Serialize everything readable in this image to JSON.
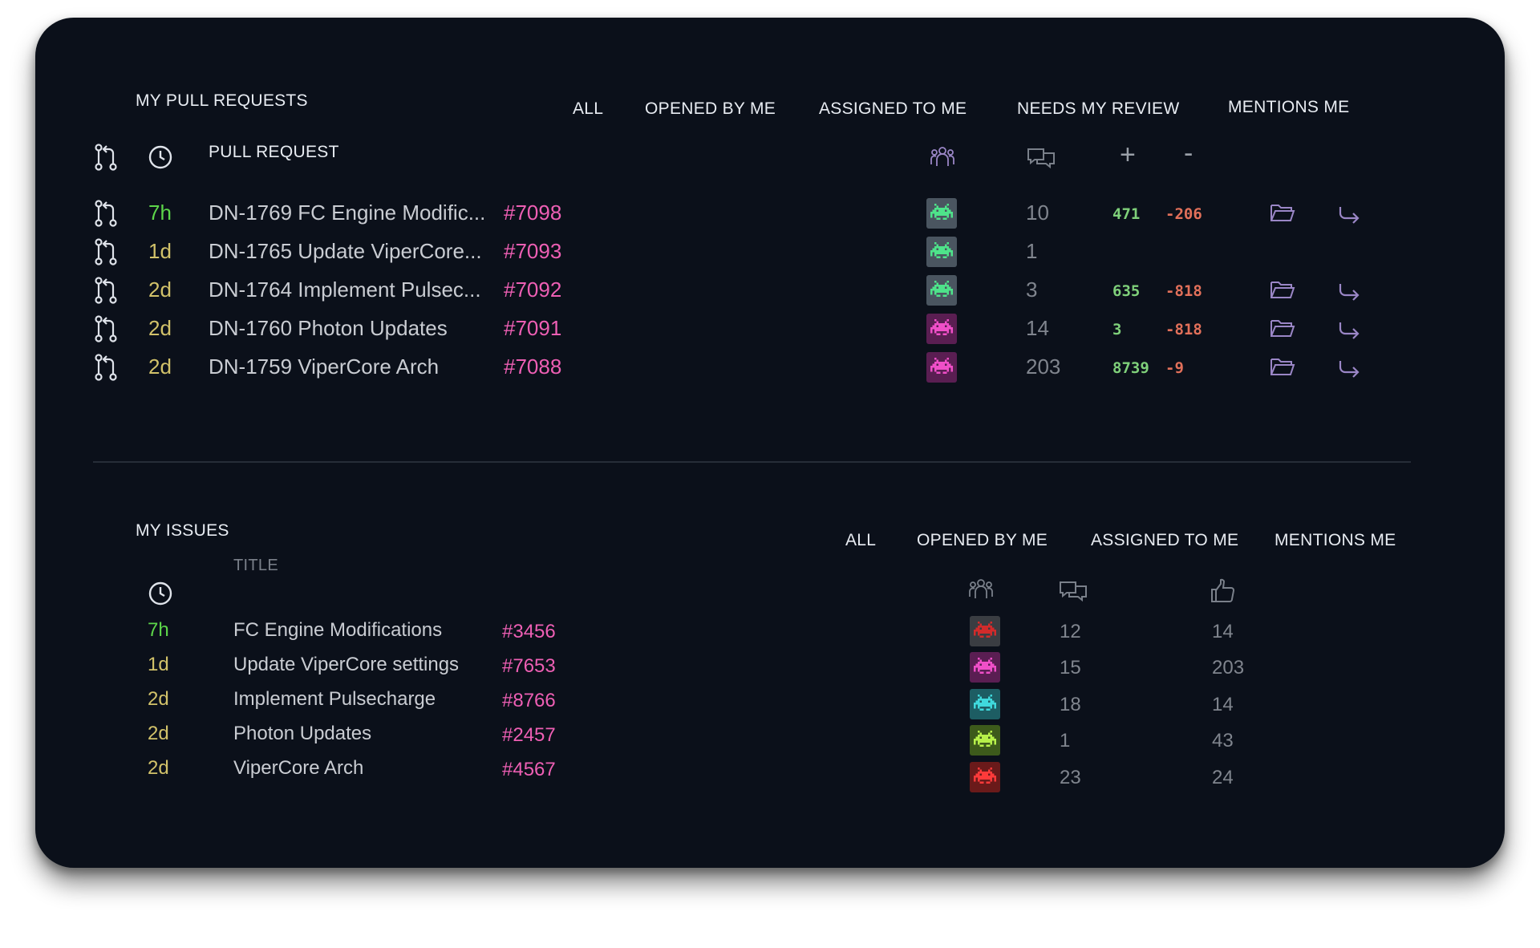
{
  "pull_requests": {
    "title": "MY PULL REQUESTS",
    "filters": [
      "ALL",
      "OPENED BY ME",
      "ASSIGNED TO ME",
      "NEEDS MY REVIEW",
      "MENTIONS ME"
    ],
    "column_header": "PULL REQUEST",
    "plus_symbol": "+",
    "minus_symbol": "-",
    "rows": [
      {
        "age": "7h",
        "title": "DN-1769 FC Engine Modific...",
        "number": "#7098",
        "comments": "10",
        "additions": "471",
        "deletions": "-206",
        "avatar_color": "#4ee38a",
        "avatar_bg": "#4a5560"
      },
      {
        "age": "1d",
        "title": "DN-1765 Update ViperCore...",
        "number": "#7093",
        "comments": "1",
        "additions": "",
        "deletions": "",
        "avatar_color": "#4ee38a",
        "avatar_bg": "#4a5560"
      },
      {
        "age": "2d",
        "title": "DN-1764 Implement Pulsec...",
        "number": "#7092",
        "comments": "3",
        "additions": "635",
        "deletions": "-818",
        "avatar_color": "#4ee38a",
        "avatar_bg": "#4a5560"
      },
      {
        "age": "2d",
        "title": "DN-1760 Photon Updates",
        "number": "#7091",
        "comments": "14",
        "additions": "3",
        "deletions": "-818",
        "avatar_color": "#f04fc8",
        "avatar_bg": "#5a1e52"
      },
      {
        "age": "2d",
        "title": "DN-1759 ViperCore Arch",
        "number": "#7088",
        "comments": "203",
        "additions": "8739",
        "deletions": "-9",
        "avatar_color": "#f04fc8",
        "avatar_bg": "#5a1e52"
      }
    ]
  },
  "issues": {
    "title": "MY ISSUES",
    "filters": [
      "ALL",
      "OPENED BY ME",
      "ASSIGNED TO ME",
      "MENTIONS ME"
    ],
    "column_header": "TITLE",
    "rows": [
      {
        "age": "7h",
        "title": "FC Engine Modifications",
        "number": "#3456",
        "comments": "12",
        "likes": "14",
        "avatar_color": "#d12b2b",
        "avatar_bg": "#3a3d42"
      },
      {
        "age": "1d",
        "title": "Update ViperCore settings",
        "number": "#7653",
        "comments": "15",
        "likes": "203",
        "avatar_color": "#f04fc8",
        "avatar_bg": "#5a1e52"
      },
      {
        "age": "2d",
        "title": "Implement Pulsecharge",
        "number": "#8766",
        "comments": "18",
        "likes": "14",
        "avatar_color": "#3fd9dc",
        "avatar_bg": "#1d5d63"
      },
      {
        "age": "2d",
        "title": "Photon Updates",
        "number": "#2457",
        "comments": "1",
        "likes": "43",
        "avatar_color": "#b7f04a",
        "avatar_bg": "#3d5a1b"
      },
      {
        "age": "2d",
        "title": "ViperCore Arch",
        "number": "#4567",
        "comments": "23",
        "likes": "24",
        "avatar_color": "#ff3a3a",
        "avatar_bg": "#6a1a1a"
      }
    ]
  },
  "colors": {
    "panel_bg": "#0b101a",
    "age_recent": "#5dd64a",
    "age_old": "#d2c26a",
    "link": "#ee5fb4",
    "additions": "#7fd07a",
    "deletions": "#e2705a",
    "icon_purple": "#9a86c6"
  },
  "icons": {
    "pr": "git-pull-request-icon",
    "clock": "clock-icon",
    "reviewers": "people-group-icon",
    "comments": "comments-icon",
    "open": "folder-open-icon",
    "reply": "reply-arrow-icon",
    "like": "thumbs-up-icon",
    "avatar": "space-invader-icon"
  }
}
